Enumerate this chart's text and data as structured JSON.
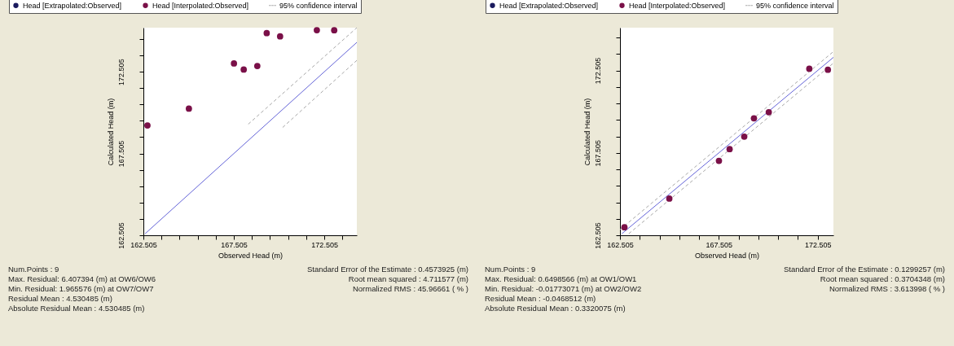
{
  "chart_data": [
    {
      "type": "scatter",
      "xlabel": "Observed Head (m)",
      "ylabel": "Calculated Head (m)",
      "xlim": [
        162.505,
        174.3
      ],
      "ylim": [
        162.505,
        175.2
      ],
      "xticks": [
        162.505,
        {
          "value": 163.505,
          "label": null
        },
        {
          "value": 164.505,
          "label": null
        },
        {
          "value": 165.505,
          "label": null
        },
        {
          "value": 166.505,
          "label": null
        },
        167.505,
        {
          "value": 168.505,
          "label": null
        },
        {
          "value": 169.505,
          "label": null
        },
        {
          "value": 170.505,
          "label": null
        },
        {
          "value": 171.505,
          "label": null
        },
        172.505,
        {
          "value": 173.505,
          "label": null
        }
      ],
      "yticks": [
        162.505,
        {
          "value": 163.505,
          "label": null
        },
        {
          "value": 164.505,
          "label": null
        },
        {
          "value": 165.505,
          "label": null
        },
        {
          "value": 166.505,
          "label": null
        },
        167.505,
        {
          "value": 168.505,
          "label": null
        },
        {
          "value": 169.505,
          "label": null
        },
        {
          "value": 170.505,
          "label": null
        },
        {
          "value": 171.505,
          "label": null
        },
        172.505,
        {
          "value": 173.505,
          "label": null
        },
        {
          "value": 174.505,
          "label": null
        }
      ],
      "grid": false,
      "legend": "top",
      "series": [
        {
          "name": "Head [Extrapolated:Observed]",
          "marker": "circle",
          "color": "#1a1a5e"
        },
        {
          "name": "Head [Interpolated:Observed]",
          "marker": "circle",
          "color": "#7a1048",
          "x": [
            162.73,
            165.02,
            167.51,
            168.05,
            168.8,
            169.32,
            170.06,
            172.09,
            173.05
          ],
          "values": [
            169.22,
            170.25,
            173.01,
            172.64,
            172.86,
            174.87,
            174.67,
            175.05,
            175.04
          ]
        },
        {
          "name": "95% confidence interval",
          "type": "line",
          "color": "#a8a8a8",
          "line_style": "dashed",
          "x": [
            168.3,
            174.3
          ],
          "values": [
            169.3,
            175.2
          ]
        },
        {
          "type": "line",
          "color": "#a8a8a8",
          "line_style": "dashed",
          "x": [
            170.2,
            174.3
          ],
          "values": [
            169.1,
            173.2
          ]
        },
        {
          "type": "line",
          "color": "#6464d8",
          "line_style": "solid",
          "x": [
            162.6,
            174.3
          ],
          "values": [
            162.6,
            174.3
          ]
        }
      ],
      "annotations": [
        "Num.Points : 9",
        "Max. Residual: 6.407394 (m) at OW6/OW6",
        "Min. Residual: 1.965576 (m) at OW7/OW7",
        "Residual Mean : 4.530485 (m)",
        "Absolute Residual Mean : 4.530485 (m)",
        "Standard Error of the Estimate : 0.4573925 (m)",
        "Root mean squared : 4.711577 (m)",
        "Normalized RMS : 45.96661 ( % )"
      ]
    },
    {
      "type": "scatter",
      "xlabel": "Observed Head (m)",
      "ylabel": "Calculated Head (m)",
      "xlim": [
        162.505,
        173.3
      ],
      "ylim": [
        162.505,
        175.1
      ],
      "xticks": [
        162.505,
        {
          "value": 163.505,
          "label": null
        },
        {
          "value": 164.505,
          "label": null
        },
        {
          "value": 165.505,
          "label": null
        },
        {
          "value": 166.505,
          "label": null
        },
        167.505,
        {
          "value": 168.505,
          "label": null
        },
        {
          "value": 169.505,
          "label": null
        },
        {
          "value": 170.505,
          "label": null
        },
        {
          "value": 171.505,
          "label": null
        },
        172.505
      ],
      "yticks": [
        162.505,
        {
          "value": 163.505,
          "label": null
        },
        {
          "value": 164.505,
          "label": null
        },
        {
          "value": 165.505,
          "label": null
        },
        {
          "value": 166.505,
          "label": null
        },
        167.505,
        {
          "value": 168.505,
          "label": null
        },
        {
          "value": 169.505,
          "label": null
        },
        {
          "value": 170.505,
          "label": null
        },
        {
          "value": 171.505,
          "label": null
        },
        172.505,
        {
          "value": 173.505,
          "label": null
        },
        {
          "value": 174.505,
          "label": null
        }
      ],
      "grid": false,
      "legend": "top",
      "series": [
        {
          "name": "Head [Extrapolated:Observed]",
          "marker": "circle",
          "color": "#1a1a5e"
        },
        {
          "name": "Head [Interpolated:Observed]",
          "marker": "circle",
          "color": "#7a1048",
          "x": [
            162.73,
            165.0,
            167.51,
            168.05,
            168.79,
            169.28,
            170.03,
            172.08,
            173.02
          ],
          "values": [
            162.99,
            164.73,
            167.02,
            167.73,
            168.49,
            169.6,
            169.97,
            172.61,
            172.55
          ]
        },
        {
          "name": "95% confidence interval",
          "type": "line",
          "color": "#a8a8a8",
          "line_style": "dashed",
          "x": [
            162.505,
            173.3
          ],
          "values": [
            162.85,
            173.65
          ]
        },
        {
          "type": "line",
          "color": "#a8a8a8",
          "line_style": "dashed",
          "x": [
            162.95,
            173.3
          ],
          "values": [
            162.6,
            172.95
          ]
        },
        {
          "type": "line",
          "color": "#6464d8",
          "line_style": "solid",
          "x": [
            162.6,
            173.3
          ],
          "values": [
            162.6,
            173.3
          ]
        }
      ],
      "annotations": [
        "Num.Points : 9",
        "Max. Residual: 0.6498566 (m) at OW1/OW1",
        "Min. Residual: -0.01773071 (m) at OW2/OW2",
        "Residual Mean : -0.0468512 (m)",
        "Absolute Residual Mean : 0.3320075 (m)",
        "Standard Error of the Estimate : 0.1299257 (m)",
        "Root mean squared : 0.3704348 (m)",
        "Normalized RMS : 3.613998 ( % )"
      ]
    }
  ]
}
